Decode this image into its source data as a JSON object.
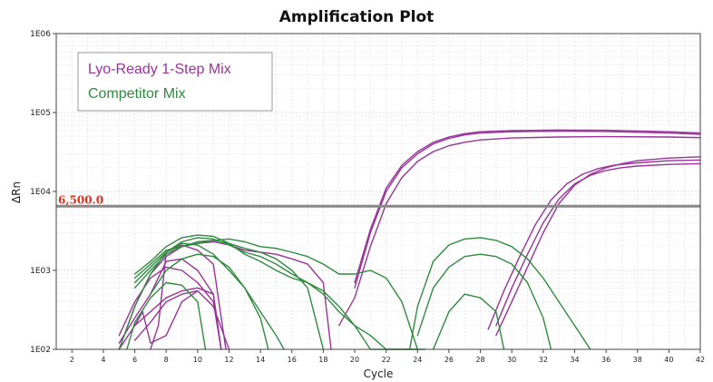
{
  "chart_data": {
    "type": "line",
    "title": "Amplification Plot",
    "xlabel": "Cycle",
    "ylabel": "ΔRn",
    "xlim": [
      1,
      42
    ],
    "ylim": [
      100,
      1000000
    ],
    "y_scale": "log",
    "x_ticks": [
      2,
      4,
      6,
      8,
      10,
      12,
      14,
      16,
      18,
      20,
      22,
      24,
      26,
      28,
      30,
      32,
      34,
      36,
      38,
      40,
      42
    ],
    "y_ticks": [
      {
        "value": 100,
        "label": "1E02"
      },
      {
        "value": 1000,
        "label": "1E03"
      },
      {
        "value": 10000,
        "label": "1E04"
      },
      {
        "value": 100000,
        "label": "1E05"
      },
      {
        "value": 1000000,
        "label": "1E06"
      }
    ],
    "grid": true,
    "legend": {
      "position": "top-left",
      "entries": [
        {
          "name": "Lyo-Ready 1-Step Mix",
          "color": "#993399"
        },
        {
          "name": "Competitor Mix",
          "color": "#2e8b3e"
        }
      ]
    },
    "threshold": {
      "value": 6500,
      "label": "6,500.0",
      "color": "#888888",
      "label_color": "#e03020"
    },
    "series": [
      {
        "group": "Lyo-Ready 1-Step Mix",
        "color": "#993399",
        "x": [
          20,
          21,
          22,
          23,
          24,
          25,
          26,
          27,
          28,
          30,
          33,
          36,
          40,
          42
        ],
        "y": [
          600,
          3000,
          10000,
          20000,
          30000,
          40000,
          47000,
          52000,
          55000,
          57000,
          58000,
          57500,
          55000,
          53000
        ]
      },
      {
        "group": "Lyo-Ready 1-Step Mix",
        "color": "#993399",
        "x": [
          20,
          21,
          22,
          23,
          24,
          25,
          26,
          27,
          28,
          30,
          33,
          36,
          40,
          42
        ],
        "y": [
          700,
          3300,
          11000,
          21500,
          32000,
          42000,
          49000,
          54000,
          57000,
          59000,
          60000,
          59500,
          57000,
          55000
        ]
      },
      {
        "group": "Lyo-Ready 1-Step Mix",
        "color": "#993399",
        "x": [
          19,
          20,
          21,
          22,
          23,
          24,
          25,
          26,
          27,
          28,
          30,
          33,
          36,
          40,
          42
        ],
        "y": [
          200,
          450,
          2000,
          7000,
          15000,
          24000,
          32000,
          38000,
          42000,
          45000,
          47500,
          49000,
          49500,
          49000,
          48000
        ]
      },
      {
        "group": "Lyo-Ready 1-Step Mix",
        "color": "#993399",
        "x": [
          29,
          30,
          31,
          32,
          33,
          34,
          35,
          36,
          37,
          38,
          40,
          42
        ],
        "y": [
          200,
          600,
          1600,
          4000,
          8000,
          12500,
          16000,
          18500,
          20000,
          21000,
          22000,
          22500
        ]
      },
      {
        "group": "Lyo-Ready 1-Step Mix",
        "color": "#993399",
        "x": [
          28.5,
          29.5,
          30.5,
          31.5,
          32.5,
          33.5,
          34.5,
          35.5,
          36.5,
          38,
          40,
          42
        ],
        "y": [
          180,
          550,
          1500,
          3800,
          7800,
          12500,
          16500,
          19500,
          21500,
          23000,
          24500,
          25000
        ]
      },
      {
        "group": "Lyo-Ready 1-Step Mix",
        "color": "#993399",
        "x": [
          29,
          30,
          31,
          32,
          33,
          34,
          35,
          36,
          37,
          38,
          40,
          42
        ],
        "y": [
          150,
          400,
          1100,
          3000,
          7000,
          12000,
          16500,
          20000,
          22500,
          24500,
          26500,
          27500
        ]
      },
      {
        "group": "Lyo-Ready 1-Step Mix",
        "color": "#993399",
        "x": [
          5,
          6,
          7,
          8,
          9,
          10,
          11,
          12,
          13,
          14,
          15,
          16,
          17,
          18,
          18.5
        ],
        "y": [
          100,
          350,
          900,
          1500,
          2000,
          2200,
          2300,
          2100,
          1800,
          1700,
          1600,
          1400,
          1200,
          700,
          100
        ]
      },
      {
        "group": "Lyo-Ready 1-Step Mix",
        "color": "#993399",
        "x": [
          5,
          6,
          7,
          8,
          9,
          10,
          11,
          11.5
        ],
        "y": [
          150,
          400,
          800,
          1100,
          1000,
          700,
          400,
          100
        ]
      },
      {
        "group": "Lyo-Ready 1-Step Mix",
        "color": "#993399",
        "x": [
          5,
          6,
          7,
          8,
          9,
          10,
          11,
          11.5
        ],
        "y": [
          120,
          250,
          500,
          1300,
          1400,
          1000,
          500,
          100
        ]
      },
      {
        "group": "Lyo-Ready 1-Step Mix",
        "color": "#993399",
        "x": [
          6,
          7,
          8,
          9,
          10,
          11,
          12
        ],
        "y": [
          130,
          220,
          400,
          500,
          550,
          350,
          100
        ]
      },
      {
        "group": "Lyo-Ready 1-Step Mix",
        "color": "#993399",
        "x": [
          6,
          7,
          8,
          9,
          10,
          11,
          11.5
        ],
        "y": [
          200,
          300,
          450,
          550,
          600,
          500,
          100
        ]
      },
      {
        "group": "Lyo-Ready 1-Step Mix",
        "color": "#993399",
        "x": [
          7,
          7.5,
          8,
          9,
          10,
          11,
          11.8
        ],
        "y": [
          100,
          200,
          1700,
          2100,
          1800,
          1200,
          100
        ]
      },
      {
        "group": "Lyo-Ready 1-Step Mix",
        "color": "#993399",
        "x": [
          5,
          6,
          6.5,
          7,
          8,
          9,
          10
        ],
        "y": [
          100,
          200,
          300,
          120,
          150,
          400,
          550
        ]
      },
      {
        "group": "Competitor Mix",
        "color": "#2e8b3e",
        "x": [
          6,
          7,
          8,
          9,
          10,
          11,
          12,
          13,
          14,
          15,
          16,
          17,
          18,
          19,
          20,
          21,
          22,
          23,
          24,
          24.5
        ],
        "y": [
          900,
          1300,
          2000,
          2600,
          2800,
          2700,
          2200,
          1600,
          1300,
          1000,
          800,
          700,
          550,
          350,
          200,
          100,
          100,
          100,
          100,
          100
        ]
      },
      {
        "group": "Competitor Mix",
        "color": "#2e8b3e",
        "x": [
          6,
          7,
          8,
          9,
          10,
          11,
          12,
          13,
          14,
          15,
          16,
          17,
          18,
          19,
          20,
          21,
          22,
          23,
          24
        ],
        "y": [
          700,
          1100,
          1700,
          2300,
          2600,
          2500,
          2100,
          1700,
          1500,
          1200,
          900,
          700,
          500,
          300,
          200,
          150,
          100,
          100,
          100
        ]
      },
      {
        "group": "Competitor Mix",
        "color": "#2e8b3e",
        "x": [
          5,
          6,
          7,
          8,
          9,
          10,
          11,
          12,
          13,
          14,
          15,
          15.5
        ],
        "y": [
          100,
          350,
          900,
          1700,
          2200,
          2100,
          1600,
          1000,
          600,
          300,
          150,
          100
        ]
      },
      {
        "group": "Competitor Mix",
        "color": "#2e8b3e",
        "x": [
          6,
          7,
          8,
          9,
          10,
          11,
          12,
          13,
          14,
          15,
          16,
          17,
          18,
          19,
          20,
          21,
          22,
          23,
          24
        ],
        "y": [
          800,
          1200,
          1800,
          2000,
          2200,
          2400,
          2500,
          2300,
          2000,
          1900,
          1700,
          1500,
          1200,
          900,
          900,
          1000,
          800,
          400,
          100
        ]
      },
      {
        "group": "Competitor Mix",
        "color": "#2e8b3e",
        "x": [
          6,
          7,
          8,
          9,
          10,
          11,
          12,
          13,
          14,
          15,
          16,
          17,
          18
        ],
        "y": [
          600,
          1000,
          1600,
          2000,
          2300,
          2400,
          2200,
          1900,
          1700,
          1400,
          1000,
          600,
          100
        ]
      },
      {
        "group": "Competitor Mix",
        "color": "#2e8b3e",
        "x": [
          7,
          8,
          9,
          10,
          11,
          12,
          13,
          14,
          14.5
        ],
        "y": [
          500,
          1000,
          1400,
          1600,
          1500,
          1100,
          600,
          250,
          100
        ]
      },
      {
        "group": "Competitor Mix",
        "color": "#2e8b3e",
        "x": [
          23.5,
          24,
          25,
          26,
          27,
          28,
          29,
          30,
          31,
          32,
          33,
          34,
          35
        ],
        "y": [
          100,
          350,
          1300,
          2100,
          2500,
          2600,
          2400,
          2000,
          1400,
          800,
          400,
          200,
          100
        ]
      },
      {
        "group": "Competitor Mix",
        "color": "#2e8b3e",
        "x": [
          24,
          25,
          26,
          27,
          28,
          29,
          30,
          31,
          32,
          32.5
        ],
        "y": [
          150,
          600,
          1100,
          1500,
          1600,
          1500,
          1200,
          700,
          250,
          100
        ]
      },
      {
        "group": "Competitor Mix",
        "color": "#2e8b3e",
        "x": [
          25,
          26,
          27,
          28,
          29,
          29.5
        ],
        "y": [
          100,
          300,
          500,
          450,
          300,
          100
        ]
      },
      {
        "group": "Competitor Mix",
        "color": "#2e8b3e",
        "x": [
          5.5,
          6,
          7,
          8,
          9,
          10,
          10.5
        ],
        "y": [
          100,
          220,
          450,
          700,
          650,
          400,
          100
        ]
      }
    ]
  }
}
